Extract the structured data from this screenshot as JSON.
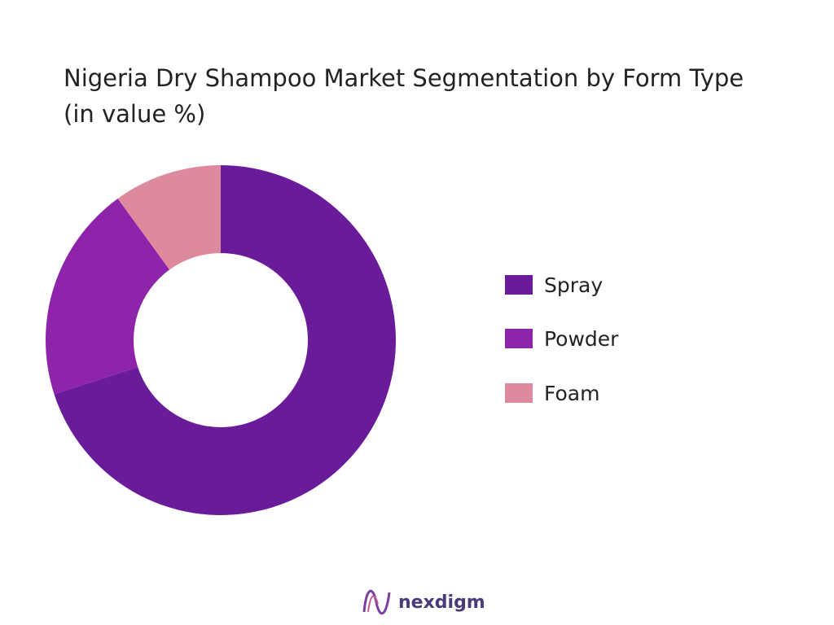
{
  "chart_data": {
    "type": "donut",
    "title": "Nigeria Dry Shampoo Market Segmentation by Form Type (in value %)",
    "categories": [
      "Spray",
      "Powder",
      "Foam"
    ],
    "values": [
      70,
      20,
      10
    ],
    "colors": [
      "#6a1b9a",
      "#8e24aa",
      "#dd8a9e"
    ],
    "legend": "right"
  },
  "footer": {
    "brand": "nexdigm"
  }
}
